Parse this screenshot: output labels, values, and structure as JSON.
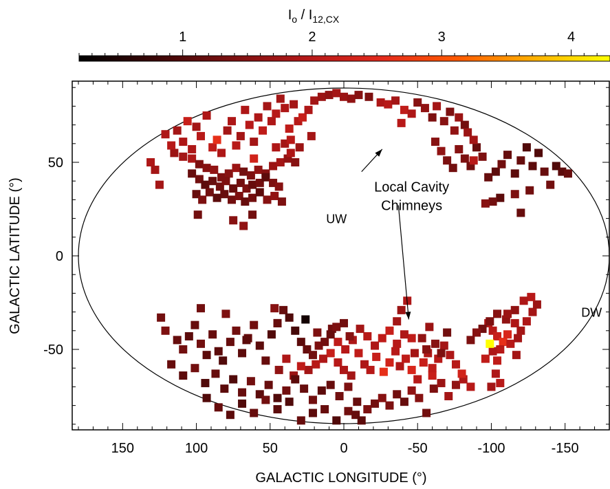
{
  "chart_data": {
    "type": "scatter",
    "xlabel": "GALACTIC LONGITUDE (°)",
    "ylabel": "GALACTIC LATITUDE (°)",
    "xlim": [
      180,
      -180
    ],
    "ylim": [
      -90,
      90
    ],
    "x_ticks": [
      150,
      100,
      50,
      0,
      -50,
      -100,
      -150
    ],
    "x_tick_labels": [
      "150",
      "100",
      "50",
      "0",
      "-50",
      "-100",
      "-150"
    ],
    "y_ticks": [
      50,
      0,
      -50
    ],
    "y_tick_labels": [
      "50",
      "0",
      "-50"
    ],
    "projection": "Aitoff all-sky ellipse",
    "grid": false,
    "colorbar": {
      "label_main": "I",
      "label_sub": "o",
      "label_sep": " / I",
      "label_sub2": "12,CX",
      "range": [
        0.2,
        4.3
      ],
      "ticks": [
        1,
        2,
        3,
        4
      ],
      "tick_labels": [
        "1",
        "2",
        "3",
        "4"
      ],
      "colors": [
        "#000000",
        "#3a0606",
        "#7a1010",
        "#b41818",
        "#e32a1c",
        "#ff5a00",
        "#ffb000",
        "#ffff00"
      ]
    },
    "annotations": [
      {
        "text": "Local Cavity",
        "x": -46,
        "y": 37
      },
      {
        "text": "Chimneys",
        "x": -46,
        "y": 27
      },
      {
        "text": "UW",
        "x": 5,
        "y": 20
      },
      {
        "text": "DW",
        "x": -168,
        "y": -30
      }
    ],
    "arrows": [
      {
        "from": [
          -12,
          45
        ],
        "to": [
          -26,
          57
        ]
      },
      {
        "from": [
          -37,
          27
        ],
        "to": [
          -44,
          -34
        ]
      }
    ],
    "points": [
      [
        131,
        50,
        1.9
      ],
      [
        128,
        46,
        1.8
      ],
      [
        115,
        55,
        1.7
      ],
      [
        109,
        53,
        1.8
      ],
      [
        103,
        52,
        1.9
      ],
      [
        98,
        49,
        1.4
      ],
      [
        93,
        47,
        1.5
      ],
      [
        88,
        46,
        1.6
      ],
      [
        83,
        42,
        1.4
      ],
      [
        78,
        44,
        1.5
      ],
      [
        73,
        47,
        1.7
      ],
      [
        68,
        45,
        1.3
      ],
      [
        63,
        43,
        1.4
      ],
      [
        58,
        46,
        1.6
      ],
      [
        53,
        44,
        1.5
      ],
      [
        48,
        48,
        1.7
      ],
      [
        43,
        50,
        1.8
      ],
      [
        38,
        52,
        1.6
      ],
      [
        33,
        50,
        1.5
      ],
      [
        103,
        44,
        1.2
      ],
      [
        98,
        41,
        1.3
      ],
      [
        94,
        38,
        1.1
      ],
      [
        89,
        40,
        1.2
      ],
      [
        84,
        37,
        1.3
      ],
      [
        80,
        40,
        1.4
      ],
      [
        75,
        36,
        1.2
      ],
      [
        70,
        39,
        1.3
      ],
      [
        66,
        36,
        1.4
      ],
      [
        62,
        38,
        1.2
      ],
      [
        57,
        39,
        1.3
      ],
      [
        53,
        42,
        1.1
      ],
      [
        48,
        39,
        1.4
      ],
      [
        44,
        37,
        1.5
      ],
      [
        100,
        33,
        1.2
      ],
      [
        96,
        30,
        1.4
      ],
      [
        91,
        34,
        1.3
      ],
      [
        86,
        31,
        1.1
      ],
      [
        81,
        33,
        1.2
      ],
      [
        76,
        30,
        1.3
      ],
      [
        71,
        32,
        1.4
      ],
      [
        67,
        29,
        1.2
      ],
      [
        62,
        31,
        1.3
      ],
      [
        57,
        34,
        1.1
      ],
      [
        52,
        30,
        1.5
      ],
      [
        47,
        32,
        1.6
      ],
      [
        42,
        29,
        1.4
      ],
      [
        99,
        22,
        1.3
      ],
      [
        75,
        19,
        1.5
      ],
      [
        68,
        16,
        1.6
      ],
      [
        62,
        22,
        1.3
      ],
      [
        125,
        38,
        1.8
      ],
      [
        121,
        65,
        1.9
      ],
      [
        117,
        59,
        2.0
      ],
      [
        113,
        67,
        1.8
      ],
      [
        109,
        61,
        1.9
      ],
      [
        106,
        72,
        2.2
      ],
      [
        103,
        57,
        1.9
      ],
      [
        100,
        69,
        1.8
      ],
      [
        97,
        64,
        2.0
      ],
      [
        93,
        75,
        1.9
      ],
      [
        89,
        58,
        2.1
      ],
      [
        86,
        62,
        2.6
      ],
      [
        83,
        55,
        1.9
      ],
      [
        79,
        67,
        1.8
      ],
      [
        76,
        72,
        1.9
      ],
      [
        73,
        59,
        2.0
      ],
      [
        70,
        64,
        1.8
      ],
      [
        67,
        78,
        1.9
      ],
      [
        64,
        70,
        2.0
      ],
      [
        61,
        61,
        1.8
      ],
      [
        58,
        74,
        1.9
      ],
      [
        55,
        67,
        2.1
      ],
      [
        52,
        80,
        1.8
      ],
      [
        49,
        72,
        1.9
      ],
      [
        46,
        76,
        2.0
      ],
      [
        43,
        84,
        1.8
      ],
      [
        40,
        79,
        1.9
      ],
      [
        37,
        68,
        2.1
      ],
      [
        34,
        81,
        1.8
      ],
      [
        31,
        72,
        2.0
      ],
      [
        28,
        74,
        2.2
      ],
      [
        24,
        78,
        1.9
      ],
      [
        20,
        83,
        1.8
      ],
      [
        15,
        85,
        1.7
      ],
      [
        10,
        86,
        1.6
      ],
      [
        5,
        87,
        1.8
      ],
      [
        0,
        85,
        1.7
      ],
      [
        -5,
        84,
        1.6
      ],
      [
        -10,
        86,
        1.5
      ],
      [
        -17,
        85,
        1.4
      ],
      [
        -25,
        82,
        1.9
      ],
      [
        -30,
        81,
        2.0
      ],
      [
        -35,
        83,
        1.8
      ],
      [
        -41,
        78,
        2.1
      ],
      [
        -46,
        76,
        1.9
      ],
      [
        -39,
        71,
        2.0
      ],
      [
        -50,
        82,
        1.5
      ],
      [
        -55,
        79,
        1.6
      ],
      [
        -60,
        74,
        1.4
      ],
      [
        -63,
        80,
        1.8
      ],
      [
        -68,
        72,
        1.5
      ],
      [
        -72,
        77,
        1.4
      ],
      [
        -75,
        67,
        1.6
      ],
      [
        -78,
        74,
        1.7
      ],
      [
        -82,
        70,
        1.3
      ],
      [
        40,
        60,
        1.8
      ],
      [
        36,
        55,
        1.9
      ],
      [
        30,
        58,
        1.7
      ],
      [
        36,
        62,
        2.0
      ],
      [
        61,
        52,
        2.3
      ],
      [
        46,
        58,
        1.9
      ],
      [
        22,
        64,
        1.8
      ],
      [
        -62,
        61,
        1.5
      ],
      [
        -66,
        56,
        1.6
      ],
      [
        -70,
        51,
        1.4
      ],
      [
        -74,
        47,
        1.3
      ],
      [
        -78,
        57,
        1.5
      ],
      [
        -82,
        52,
        1.4
      ],
      [
        -86,
        48,
        1.3
      ],
      [
        -90,
        58,
        1.2
      ],
      [
        -94,
        53,
        1.4
      ],
      [
        -98,
        42,
        1.2
      ],
      [
        -103,
        45,
        1.1
      ],
      [
        -107,
        49,
        1.3
      ],
      [
        -111,
        54,
        1.2
      ],
      [
        -116,
        44,
        1.1
      ],
      [
        -120,
        51,
        1.2
      ],
      [
        -124,
        58,
        1.0
      ],
      [
        -128,
        48,
        1.1
      ],
      [
        -132,
        55,
        1.0
      ],
      [
        -136,
        45,
        1.2
      ],
      [
        -140,
        38,
        1.3
      ],
      [
        -144,
        48,
        1.0
      ],
      [
        -148,
        45,
        1.1
      ],
      [
        -152,
        44,
        1.2
      ],
      [
        -126,
        35,
        1.3
      ],
      [
        -116,
        33,
        1.4
      ],
      [
        -120,
        23,
        1.2
      ],
      [
        -106,
        31,
        1.1
      ],
      [
        -101,
        29,
        1.3
      ],
      [
        -96,
        28,
        1.5
      ],
      [
        -88,
        62,
        1.8
      ],
      [
        -88,
        51,
        2.0
      ],
      [
        -84,
        66,
        1.7
      ],
      [
        -3,
        -83,
        1.3
      ],
      [
        -8,
        -85,
        1.2
      ],
      [
        -12,
        -88,
        1.1
      ],
      [
        -16,
        -82,
        1.4
      ],
      [
        -21,
        -79,
        1.3
      ],
      [
        -26,
        -76,
        1.5
      ],
      [
        -31,
        -80,
        1.4
      ],
      [
        -36,
        -74,
        1.3
      ],
      [
        -41,
        -78,
        1.2
      ],
      [
        -46,
        -72,
        1.6
      ],
      [
        -51,
        -76,
        1.5
      ],
      [
        -56,
        -84,
        1.3
      ],
      [
        -61,
        -71,
        1.4
      ],
      [
        -66,
        -68,
        1.7
      ],
      [
        -71,
        -75,
        1.8
      ],
      [
        -76,
        -69,
        1.6
      ],
      [
        -81,
        -66,
        1.9
      ],
      [
        -86,
        -70,
        2.0
      ],
      [
        -60,
        -64,
        2.2
      ],
      [
        4,
        -57,
        2.0
      ],
      [
        0,
        -61,
        1.9
      ],
      [
        -5,
        -64,
        1.8
      ],
      [
        -10,
        -52,
        2.1
      ],
      [
        -14,
        -58,
        1.9
      ],
      [
        -18,
        -61,
        2.0
      ],
      [
        -22,
        -54,
        2.2
      ],
      [
        -27,
        -62,
        2.6
      ],
      [
        -31,
        -57,
        2.3
      ],
      [
        -35,
        -51,
        2.0
      ],
      [
        -38,
        -59,
        1.9
      ],
      [
        -42,
        -55,
        2.1
      ],
      [
        -46,
        -61,
        2.4
      ],
      [
        -50,
        -66,
        2.0
      ],
      [
        -54,
        -57,
        2.2
      ],
      [
        -57,
        -52,
        1.9
      ],
      [
        -60,
        -60,
        2.1
      ],
      [
        -64,
        -55,
        2.0
      ],
      [
        -68,
        -48,
        1.8
      ],
      [
        -72,
        -53,
        1.9
      ],
      [
        -76,
        -58,
        2.0
      ],
      [
        -80,
        -63,
        2.3
      ],
      [
        -46,
        -44,
        2.1
      ],
      [
        -41,
        -42,
        1.9
      ],
      [
        -36,
        -47,
        2.0
      ],
      [
        -31,
        -40,
        2.2
      ],
      [
        -26,
        -44,
        2.1
      ],
      [
        -21,
        -48,
        1.9
      ],
      [
        -16,
        -43,
        2.0
      ],
      [
        -11,
        -39,
        1.8
      ],
      [
        -6,
        -45,
        1.9
      ],
      [
        -1,
        -50,
        2.0
      ],
      [
        4,
        -46,
        2.1
      ],
      [
        9,
        -52,
        2.2
      ],
      [
        14,
        -55,
        1.9
      ],
      [
        19,
        -58,
        2.0
      ],
      [
        24,
        -61,
        1.8
      ],
      [
        29,
        -59,
        2.1
      ],
      [
        34,
        -64,
        1.7
      ],
      [
        39,
        -55,
        1.9
      ],
      [
        44,
        -61,
        1.6
      ],
      [
        18,
        -41,
        1.4
      ],
      [
        8,
        -39,
        1.3
      ],
      [
        -53,
        -44,
        1.6
      ],
      [
        -62,
        -47,
        1.5
      ],
      [
        -66,
        -52,
        1.4
      ],
      [
        -70,
        -41,
        1.3
      ],
      [
        -56,
        -50,
        1.5
      ],
      [
        -58,
        -38,
        1.7
      ],
      [
        -48,
        -52,
        1.8
      ],
      [
        -98,
        -36,
        1.9
      ],
      [
        -101,
        -40,
        2.0
      ],
      [
        -104,
        -43,
        2.2
      ],
      [
        -108,
        -46,
        2.6
      ],
      [
        -111,
        -42,
        2.4
      ],
      [
        -106,
        -50,
        2.0
      ],
      [
        -101,
        -51,
        1.9
      ],
      [
        -96,
        -55,
        2.1
      ],
      [
        -113,
        -47,
        2.0
      ],
      [
        -117,
        -53,
        1.8
      ],
      [
        -110,
        -34,
        1.6
      ],
      [
        -104,
        -31,
        1.5
      ],
      [
        -99,
        -35,
        1.4
      ],
      [
        -94,
        -39,
        1.3
      ],
      [
        -90,
        -41,
        1.5
      ],
      [
        -86,
        -45,
        1.4
      ],
      [
        -116,
        -36,
        1.9
      ],
      [
        -120,
        -40,
        1.8
      ],
      [
        -124,
        -35,
        1.9
      ],
      [
        -128,
        -30,
        1.8
      ],
      [
        -131,
        -26,
        1.7
      ],
      [
        -127,
        -22,
        2.0
      ],
      [
        -122,
        -24,
        1.9
      ],
      [
        -116,
        -29,
        1.6
      ],
      [
        -111,
        -31,
        1.7
      ],
      [
        -118,
        -44,
        1.8
      ],
      [
        -104,
        -56,
        2.1
      ],
      [
        -99,
        -47,
        4.3
      ],
      [
        -103,
        -63,
        1.9
      ],
      [
        -106,
        -68,
        2.0
      ],
      [
        -100,
        -70,
        1.8
      ],
      [
        -36,
        -35,
        1.8
      ],
      [
        -39,
        -29,
        1.7
      ],
      [
        -43,
        -24,
        1.9
      ],
      [
        124,
        -33,
        1.3
      ],
      [
        121,
        -40,
        1.4
      ],
      [
        113,
        -45,
        1.2
      ],
      [
        109,
        -50,
        1.3
      ],
      [
        105,
        -43,
        1.1
      ],
      [
        101,
        -37,
        1.2
      ],
      [
        97,
        -47,
        1.3
      ],
      [
        93,
        -53,
        1.1
      ],
      [
        89,
        -42,
        1.2
      ],
      [
        85,
        -51,
        1.1
      ],
      [
        82,
        -56,
        1.0
      ],
      [
        77,
        -46,
        1.2
      ],
      [
        73,
        -40,
        1.3
      ],
      [
        69,
        -52,
        1.1
      ],
      [
        65,
        -44,
        1.2
      ],
      [
        61,
        -37,
        1.3
      ],
      [
        57,
        -48,
        1.1
      ],
      [
        53,
        -56,
        1.2
      ],
      [
        49,
        -42,
        1.0
      ],
      [
        45,
        -36,
        1.1
      ],
      [
        41,
        -29,
        1.2
      ],
      [
        37,
        -33,
        1.0
      ],
      [
        33,
        -40,
        0.9
      ],
      [
        29,
        -46,
        1.1
      ],
      [
        25,
        -50,
        1.2
      ],
      [
        21,
        -53,
        1.3
      ],
      [
        17,
        -48,
        1.4
      ],
      [
        13,
        -46,
        1.3
      ],
      [
        9,
        -42,
        1.2
      ],
      [
        5,
        -38,
        1.4
      ],
      [
        0,
        -36,
        1.3
      ],
      [
        -4,
        -43,
        1.5
      ],
      [
        26,
        -34,
        0.4
      ],
      [
        117,
        -58,
        1.2
      ],
      [
        109,
        -64,
        1.1
      ],
      [
        101,
        -60,
        1.3
      ],
      [
        94,
        -68,
        1.0
      ],
      [
        87,
        -63,
        1.2
      ],
      [
        81,
        -71,
        1.1
      ],
      [
        75,
        -66,
        1.0
      ],
      [
        69,
        -73,
        1.2
      ],
      [
        63,
        -67,
        1.3
      ],
      [
        57,
        -74,
        1.1
      ],
      [
        51,
        -69,
        1.2
      ],
      [
        45,
        -76,
        1.0
      ],
      [
        39,
        -72,
        1.3
      ],
      [
        33,
        -66,
        1.1
      ],
      [
        27,
        -71,
        1.2
      ],
      [
        21,
        -77,
        1.3
      ],
      [
        15,
        -72,
        1.1
      ],
      [
        9,
        -69,
        1.2
      ],
      [
        3,
        -75,
        1.3
      ],
      [
        -3,
        -70,
        1.4
      ],
      [
        -9,
        -78,
        1.2
      ],
      [
        93,
        -76,
        1.0
      ],
      [
        85,
        -81,
        1.2
      ],
      [
        77,
        -85,
        1.1
      ],
      [
        69,
        -79,
        1.0
      ],
      [
        61,
        -84,
        1.2
      ],
      [
        53,
        -77,
        1.3
      ],
      [
        45,
        -82,
        1.1
      ],
      [
        37,
        -78,
        1.0
      ],
      [
        29,
        -88,
        1.2
      ],
      [
        21,
        -84,
        1.1
      ],
      [
        13,
        -82,
        1.2
      ],
      [
        5,
        -88,
        1.0
      ],
      [
        97,
        -28,
        1.3
      ],
      [
        80,
        -31,
        1.4
      ],
      [
        47,
        -28,
        1.5
      ],
      [
        45,
        -36,
        1.2
      ],
      [
        66,
        -45,
        1.1
      ]
    ]
  }
}
